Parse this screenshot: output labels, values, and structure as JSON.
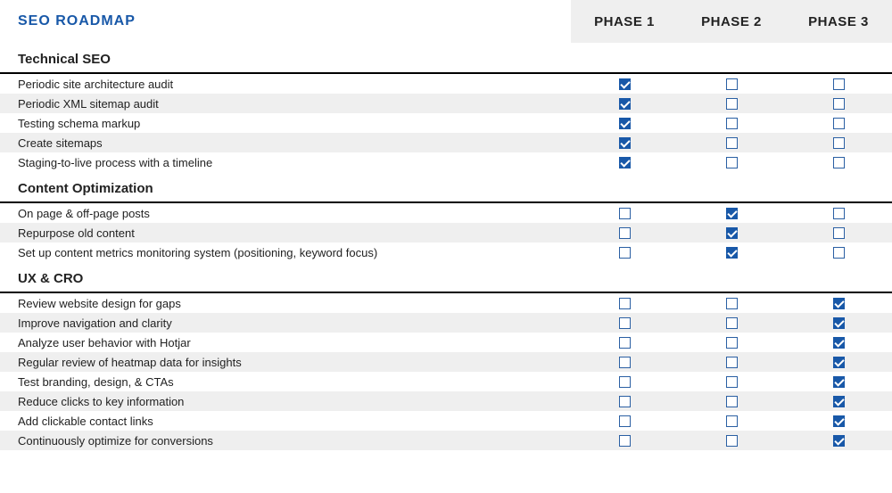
{
  "brand": {
    "text": "SEO ROADMAP",
    "color": "#1858a8"
  },
  "phases": [
    "PHASE 1",
    "PHASE 2",
    "PHASE 3"
  ],
  "colors": {
    "alt_row": "#efefef",
    "checkbox_border": "#2a5fa3",
    "checkbox_fill": "#1858a8",
    "divider": "#000000",
    "background": "#ffffff"
  },
  "sections": [
    {
      "title": "Technical SEO",
      "rows": [
        {
          "task": "Periodic site architecture audit",
          "checks": [
            true,
            false,
            false
          ]
        },
        {
          "task": "Periodic XML sitemap audit",
          "checks": [
            true,
            false,
            false
          ]
        },
        {
          "task": "Testing schema markup",
          "checks": [
            true,
            false,
            false
          ]
        },
        {
          "task": "Create sitemaps",
          "checks": [
            true,
            false,
            false
          ]
        },
        {
          "task": "Staging-to-live process with a timeline",
          "checks": [
            true,
            false,
            false
          ]
        }
      ]
    },
    {
      "title": "Content Optimization",
      "rows": [
        {
          "task": "On page & off-page posts",
          "checks": [
            false,
            true,
            false
          ]
        },
        {
          "task": "Repurpose old content",
          "checks": [
            false,
            true,
            false
          ]
        },
        {
          "task": "Set up content metrics monitoring system (positioning, keyword focus)",
          "checks": [
            false,
            true,
            false
          ]
        }
      ]
    },
    {
      "title": "UX & CRO",
      "rows": [
        {
          "task": "Review website design for gaps",
          "checks": [
            false,
            false,
            true
          ]
        },
        {
          "task": "Improve navigation and clarity",
          "checks": [
            false,
            false,
            true
          ]
        },
        {
          "task": "Analyze user behavior with Hotjar",
          "checks": [
            false,
            false,
            true
          ]
        },
        {
          "task": "Regular review of heatmap data for insights",
          "checks": [
            false,
            false,
            true
          ]
        },
        {
          "task": "Test branding, design, & CTAs",
          "checks": [
            false,
            false,
            true
          ]
        },
        {
          "task": "Reduce clicks to key information",
          "checks": [
            false,
            false,
            true
          ]
        },
        {
          "task": "Add clickable contact links",
          "checks": [
            false,
            false,
            true
          ]
        },
        {
          "task": "Continuously optimize for conversions",
          "checks": [
            false,
            false,
            true
          ]
        }
      ]
    }
  ]
}
